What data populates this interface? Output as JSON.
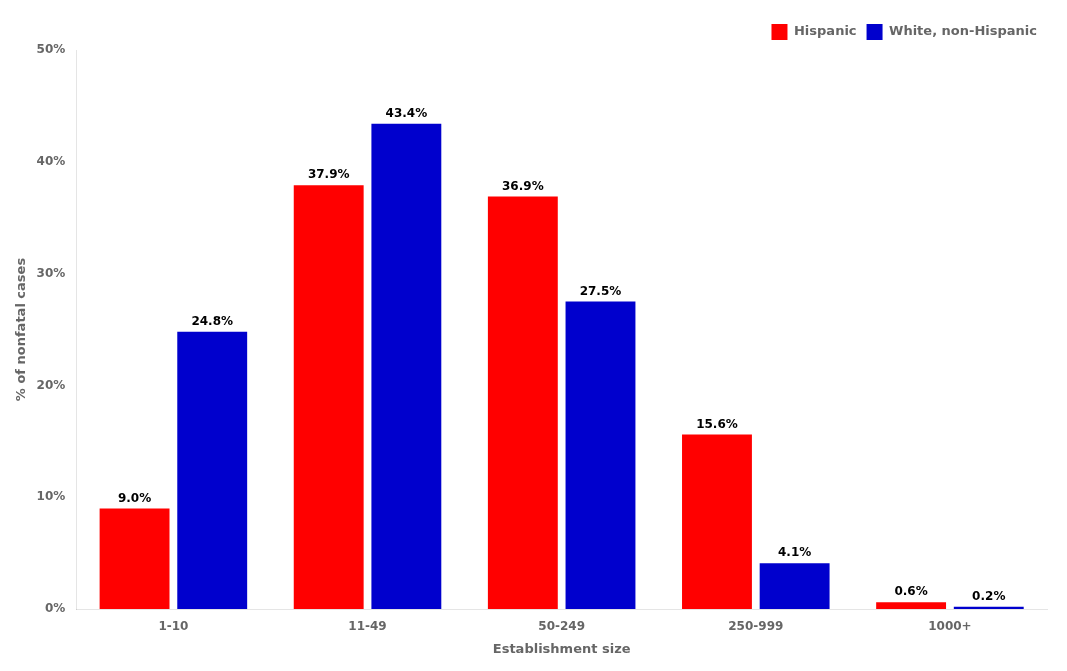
{
  "chart_data": {
    "type": "bar",
    "categories": [
      "1-10",
      "11-49",
      "50-249",
      "250-999",
      "1000+"
    ],
    "series": [
      {
        "name": "Hispanic",
        "color": "#FF0000",
        "values": [
          9.0,
          37.9,
          36.9,
          15.6,
          0.6
        ],
        "value_labels": [
          "9.0%",
          "37.9%",
          "36.9%",
          "15.6%",
          "0.6%"
        ]
      },
      {
        "name": "White, non-Hispanic",
        "color": "#0000CD",
        "values": [
          24.8,
          43.4,
          27.5,
          4.1,
          0.2
        ],
        "value_labels": [
          "24.8%",
          "43.4%",
          "27.5%",
          "4.1%",
          "0.2%"
        ]
      }
    ],
    "x_label": "Establishment size",
    "y_label": "% of nonfatal cases",
    "ylim": [
      0,
      50
    ],
    "yticks": [
      {
        "value": 0,
        "label": "0%"
      },
      {
        "value": 10,
        "label": "10%"
      },
      {
        "value": 20,
        "label": "20%"
      },
      {
        "value": 30,
        "label": "30%"
      },
      {
        "value": 40,
        "label": "40%"
      },
      {
        "value": 50,
        "label": "50%"
      }
    ],
    "grid": false,
    "legend": "upper right",
    "data_labels": true
  }
}
